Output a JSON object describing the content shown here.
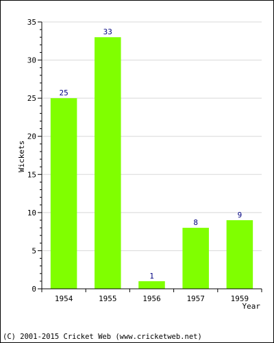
{
  "chart_data": {
    "type": "bar",
    "categories": [
      "1954",
      "1955",
      "1956",
      "1957",
      "1959"
    ],
    "values": [
      25,
      33,
      1,
      8,
      9
    ],
    "xlabel": "Year",
    "ylabel": "Wickets",
    "ylim": [
      0,
      35
    ],
    "yticks": [
      0,
      5,
      10,
      15,
      20,
      25,
      30,
      35
    ],
    "grid": true,
    "show_value_labels": true,
    "bar_color": "#80ff00",
    "value_label_color": "#000080",
    "grid_color": "#d8d8d8"
  },
  "footer": {
    "copyright": "(C) 2001-2015 Cricket Web (www.cricketweb.net)"
  }
}
